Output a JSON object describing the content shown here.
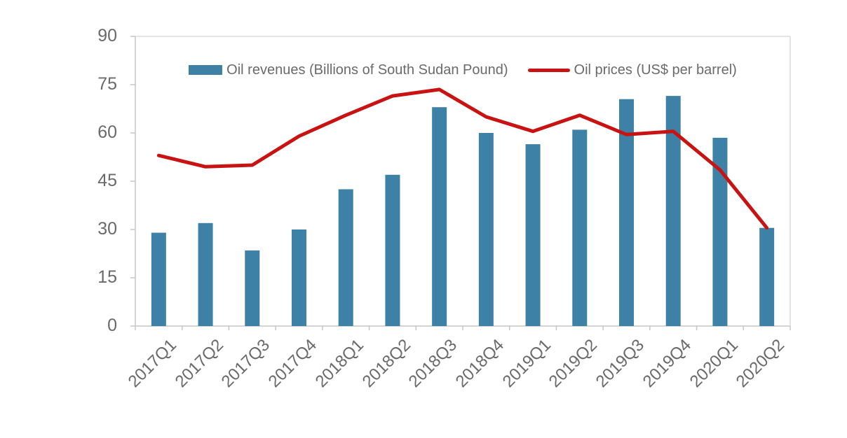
{
  "legend": {
    "revenues_label": "Oil revenues (Billions of South Sudan Pound)",
    "prices_label": "Oil prices (US$ per barrel)"
  },
  "colors": {
    "bar": "#3e81a6",
    "line": "#c91313",
    "axis": "#c6c6c6",
    "plot_border": "#dcdcdc",
    "label_text": "#6a6a6a"
  },
  "chart_data": {
    "type": "bar",
    "title": "",
    "xlabel": "",
    "ylabel": "",
    "categories": [
      "2017Q1",
      "2017Q2",
      "2017Q3",
      "2017Q4",
      "2018Q1",
      "2018Q2",
      "2018Q3",
      "2018Q4",
      "2019Q1",
      "2019Q2",
      "2019Q3",
      "2019Q4",
      "2020Q1",
      "2020Q2"
    ],
    "series": [
      {
        "name": "Oil revenues (Billions of South Sudan Pound)",
        "type": "bar",
        "values": [
          29,
          32,
          23.5,
          30,
          42.5,
          47,
          68,
          60,
          56.5,
          61,
          70.5,
          71.5,
          58.5,
          30.5
        ]
      },
      {
        "name": "Oil prices (US$ per barrel)",
        "type": "line",
        "values": [
          53,
          49.5,
          50,
          59,
          65.5,
          71.5,
          73.5,
          65,
          60.5,
          65.5,
          59.5,
          60.5,
          48.5,
          30.5
        ]
      }
    ],
    "ylim": [
      0,
      90
    ],
    "yticks": [
      0,
      15,
      30,
      45,
      60,
      75,
      90
    ],
    "grid": false,
    "legend_position": "top-center"
  }
}
